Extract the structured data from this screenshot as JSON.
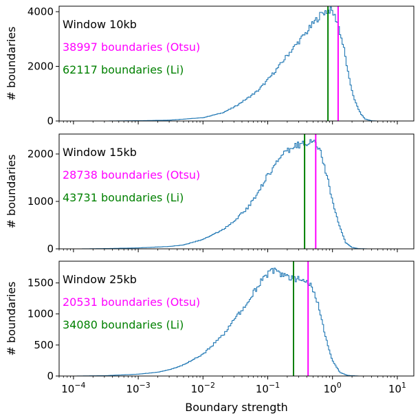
{
  "chart_data": [
    {
      "type": "histogram",
      "annotations": [
        {
          "text": "Window 10kb",
          "color": "#000000"
        },
        {
          "text": "38997 boundaries (Otsu)",
          "color": "#ff00ff"
        },
        {
          "text": "62117 boundaries (Li)",
          "color": "#008000"
        }
      ],
      "ylabel": "# boundaries",
      "ylim": [
        0,
        4200
      ],
      "yticks": [
        0,
        2000,
        4000
      ],
      "thresholds": [
        {
          "name": "Li",
          "x": 0.85,
          "color": "#008000"
        },
        {
          "name": "Otsu",
          "x": 1.22,
          "color": "#ff00ff"
        }
      ],
      "curve": [
        [
          0.0001,
          0
        ],
        [
          0.0003,
          0
        ],
        [
          0.001,
          10
        ],
        [
          0.003,
          30
        ],
        [
          0.01,
          120
        ],
        [
          0.02,
          300
        ],
        [
          0.03,
          500
        ],
        [
          0.05,
          850
        ],
        [
          0.07,
          1100
        ],
        [
          0.1,
          1500
        ],
        [
          0.15,
          2000
        ],
        [
          0.2,
          2400
        ],
        [
          0.3,
          2900
        ],
        [
          0.4,
          3250
        ],
        [
          0.5,
          3550
        ],
        [
          0.6,
          3780
        ],
        [
          0.7,
          3950
        ],
        [
          0.8,
          4020
        ],
        [
          0.9,
          4060
        ],
        [
          1.0,
          4000
        ],
        [
          1.2,
          3600
        ],
        [
          1.5,
          2650
        ],
        [
          1.8,
          1550
        ],
        [
          2.2,
          750
        ],
        [
          2.7,
          280
        ],
        [
          3.2,
          70
        ],
        [
          4.0,
          8
        ],
        [
          5.0,
          0
        ]
      ]
    },
    {
      "type": "histogram",
      "annotations": [
        {
          "text": "Window 15kb",
          "color": "#000000"
        },
        {
          "text": "28738 boundaries (Otsu)",
          "color": "#ff00ff"
        },
        {
          "text": "43731 boundaries (Li)",
          "color": "#008000"
        }
      ],
      "ylabel": "# boundaries",
      "ylim": [
        0,
        2420
      ],
      "yticks": [
        0,
        1000,
        2000
      ],
      "thresholds": [
        {
          "name": "Li",
          "x": 0.37,
          "color": "#008000"
        },
        {
          "name": "Otsu",
          "x": 0.55,
          "color": "#ff00ff"
        }
      ],
      "curve": [
        [
          0.00012,
          0
        ],
        [
          0.0003,
          5
        ],
        [
          0.001,
          20
        ],
        [
          0.003,
          50
        ],
        [
          0.005,
          80
        ],
        [
          0.01,
          200
        ],
        [
          0.02,
          400
        ],
        [
          0.03,
          580
        ],
        [
          0.05,
          880
        ],
        [
          0.07,
          1180
        ],
        [
          0.1,
          1550
        ],
        [
          0.15,
          1900
        ],
        [
          0.2,
          2050
        ],
        [
          0.3,
          2200
        ],
        [
          0.4,
          2250
        ],
        [
          0.5,
          2270
        ],
        [
          0.6,
          2150
        ],
        [
          0.7,
          1900
        ],
        [
          0.85,
          1450
        ],
        [
          1.0,
          1000
        ],
        [
          1.3,
          450
        ],
        [
          1.6,
          130
        ],
        [
          2.0,
          30
        ],
        [
          2.5,
          5
        ],
        [
          3.5,
          0
        ]
      ]
    },
    {
      "type": "histogram",
      "annotations": [
        {
          "text": "Window 25kb",
          "color": "#000000"
        },
        {
          "text": "20531 boundaries (Otsu)",
          "color": "#ff00ff"
        },
        {
          "text": "34080 boundaries (Li)",
          "color": "#008000"
        }
      ],
      "ylabel": "# boundaries",
      "xlabel": "Boundary strength",
      "ylim": [
        0,
        1850
      ],
      "yticks": [
        0,
        500,
        1000,
        1500
      ],
      "thresholds": [
        {
          "name": "Li",
          "x": 0.25,
          "color": "#008000"
        },
        {
          "name": "Otsu",
          "x": 0.42,
          "color": "#ff00ff"
        }
      ],
      "curve": [
        [
          0.0001,
          0
        ],
        [
          0.0003,
          5
        ],
        [
          0.001,
          30
        ],
        [
          0.002,
          60
        ],
        [
          0.003,
          100
        ],
        [
          0.005,
          180
        ],
        [
          0.01,
          350
        ],
        [
          0.02,
          650
        ],
        [
          0.03,
          900
        ],
        [
          0.05,
          1200
        ],
        [
          0.07,
          1450
        ],
        [
          0.1,
          1650
        ],
        [
          0.12,
          1700
        ],
        [
          0.15,
          1640
        ],
        [
          0.2,
          1620
        ],
        [
          0.25,
          1580
        ],
        [
          0.3,
          1560
        ],
        [
          0.4,
          1520
        ],
        [
          0.5,
          1400
        ],
        [
          0.6,
          1150
        ],
        [
          0.7,
          850
        ],
        [
          0.85,
          480
        ],
        [
          1.0,
          250
        ],
        [
          1.3,
          60
        ],
        [
          1.7,
          10
        ],
        [
          2.5,
          0
        ]
      ]
    }
  ],
  "xaxis": {
    "scale": "log",
    "xlim": [
      6e-05,
      18
    ],
    "ticks": [
      {
        "value": 0.0001,
        "base": "10",
        "exp": "−4"
      },
      {
        "value": 0.001,
        "base": "10",
        "exp": "−3"
      },
      {
        "value": 0.01,
        "base": "10",
        "exp": "−2"
      },
      {
        "value": 0.1,
        "base": "10",
        "exp": "−1"
      },
      {
        "value": 1,
        "base": "10",
        "exp": "0"
      },
      {
        "value": 10,
        "base": "10",
        "exp": "1"
      }
    ]
  },
  "colors": {
    "histogram": "#1f77b4",
    "otsu": "#ff00ff",
    "li": "#008000"
  }
}
